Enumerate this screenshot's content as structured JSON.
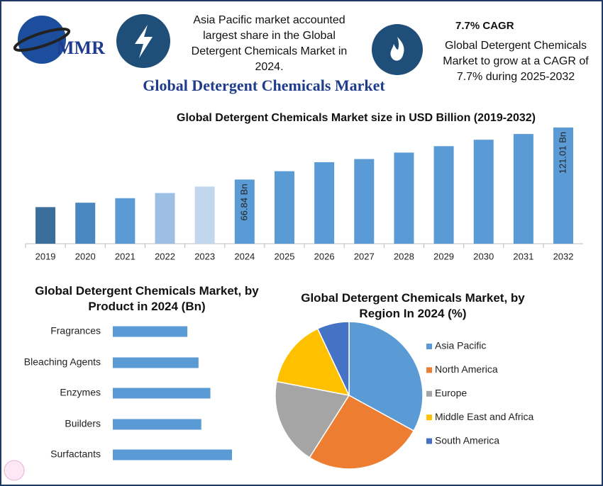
{
  "header": {
    "logo": "MMR",
    "highlight": "Asia Pacific market accounted largest share in the Global Detergent Chemicals Market in 2024.",
    "cagr_title": "7.7% CAGR",
    "cagr_text": "Global Detergent Chemicals Market to grow at a CAGR of 7.7% during 2025-2032",
    "title": "Global Detergent Chemicals Market"
  },
  "chart_data": [
    {
      "type": "bar",
      "title": "Global Detergent Chemicals Market size in USD Billion (2019-2032)",
      "categories": [
        "2019",
        "2020",
        "2021",
        "2022",
        "2023",
        "2024",
        "2025",
        "2026",
        "2027",
        "2028",
        "2029",
        "2030",
        "2031",
        "2032"
      ],
      "values": [
        38.1,
        42.7,
        47.4,
        52.8,
        59.5,
        66.84,
        75.5,
        84.9,
        88.2,
        94.9,
        101.6,
        108.3,
        114.3,
        121.01
      ],
      "value_labels": [
        null,
        null,
        null,
        null,
        null,
        "66.84 Bn",
        null,
        null,
        null,
        null,
        null,
        null,
        null,
        "121.01 Bn"
      ],
      "colors": [
        "#3b6e9a",
        "#4a86c0",
        "#5b9bd5",
        "#9dbfe4",
        "#c2d6ee",
        "#5b9bd5",
        "#5b9bd5",
        "#5b9bd5",
        "#5b9bd5",
        "#5b9bd5",
        "#5b9bd5",
        "#5b9bd5",
        "#5b9bd5",
        "#5b9bd5"
      ]
    },
    {
      "type": "hbar",
      "title": "Global Detergent Chemicals Market, by Product  in 2024 (Bn)",
      "categories": [
        "Fragrances",
        "Bleaching Agents",
        "Enzymes",
        "Builders",
        "Surfactants"
      ],
      "values": [
        10.7,
        12.3,
        14.0,
        12.7,
        17.1
      ],
      "color": "#5b9bd5"
    },
    {
      "type": "pie",
      "title": "Global Detergent Chemicals Market, by Region In 2024 (%)",
      "categories": [
        "Asia Pacific",
        "North America",
        "Europe",
        "Middle East and Africa",
        "South America"
      ],
      "values": [
        33,
        26,
        19,
        15,
        7
      ],
      "colors": [
        "#5b9bd5",
        "#ed7d31",
        "#a5a5a5",
        "#ffc000",
        "#4472c4"
      ]
    }
  ]
}
